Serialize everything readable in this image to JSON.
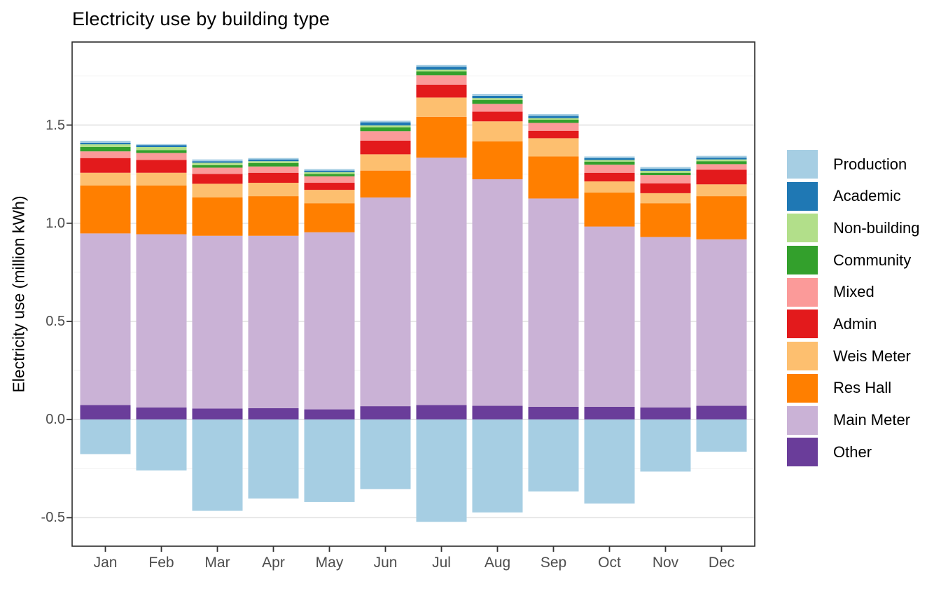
{
  "title": "Electricity use by building type",
  "y_axis": {
    "label": "Electricity use (million kWh)",
    "tick_labels": [
      "-0.5",
      "0.0",
      "0.5",
      "1.0",
      "1.5"
    ],
    "tick_values": [
      -0.5,
      0.0,
      0.5,
      1.0,
      1.5
    ]
  },
  "x_axis": {
    "tick_labels": [
      "Jan",
      "Feb",
      "Mar",
      "Apr",
      "May",
      "Jun",
      "Jul",
      "Aug",
      "Sep",
      "Oct",
      "Nov",
      "Dec"
    ]
  },
  "legend": {
    "entries": [
      {
        "label": "Production",
        "color": "#a6cee3"
      },
      {
        "label": "Academic",
        "color": "#1f78b4"
      },
      {
        "label": "Non-building",
        "color": "#b2df8a"
      },
      {
        "label": "Community",
        "color": "#33a02c"
      },
      {
        "label": "Mixed",
        "color": "#fb9a99"
      },
      {
        "label": "Admin",
        "color": "#e31a1c"
      },
      {
        "label": "Weis Meter",
        "color": "#fdbf6f"
      },
      {
        "label": "Res Hall",
        "color": "#ff7f00"
      },
      {
        "label": "Main Meter",
        "color": "#cab2d6"
      },
      {
        "label": "Other",
        "color": "#6a3d9a"
      }
    ]
  },
  "chart_data": {
    "type": "bar",
    "stacked": true,
    "title": "Electricity use by building type",
    "xlabel": "",
    "ylabel": "Electricity use (million kWh)",
    "categories": [
      "Jan",
      "Feb",
      "Mar",
      "Apr",
      "May",
      "Jun",
      "Jul",
      "Aug",
      "Sep",
      "Oct",
      "Nov",
      "Dec"
    ],
    "ylim": [
      -0.645,
      1.923
    ],
    "grid_major": [
      -0.5,
      0.0,
      0.5,
      1.0,
      1.5
    ],
    "grid_minor": [
      -0.25,
      0.25,
      0.75,
      1.25,
      1.75
    ],
    "legend_position": "right",
    "units": "million kWh",
    "series": [
      {
        "name": "Other",
        "color": "#6a3d9a",
        "values": [
          0.074,
          0.062,
          0.056,
          0.058,
          0.052,
          0.068,
          0.074,
          0.07,
          0.065,
          0.065,
          0.062,
          0.07
        ]
      },
      {
        "name": "Main Meter",
        "color": "#cab2d6",
        "values": [
          0.874,
          0.882,
          0.88,
          0.878,
          0.902,
          1.063,
          1.26,
          1.154,
          1.061,
          0.918,
          0.868,
          0.848
        ]
      },
      {
        "name": "Res Hall",
        "color": "#ff7f00",
        "values": [
          0.244,
          0.248,
          0.196,
          0.202,
          0.148,
          0.137,
          0.208,
          0.193,
          0.214,
          0.173,
          0.172,
          0.22
        ]
      },
      {
        "name": "Weis Meter",
        "color": "#fdbf6f",
        "values": [
          0.065,
          0.065,
          0.069,
          0.068,
          0.068,
          0.083,
          0.098,
          0.102,
          0.093,
          0.057,
          0.051,
          0.06
        ]
      },
      {
        "name": "Admin",
        "color": "#e31a1c",
        "values": [
          0.075,
          0.065,
          0.05,
          0.051,
          0.036,
          0.07,
          0.066,
          0.049,
          0.038,
          0.044,
          0.05,
          0.075
        ]
      },
      {
        "name": "Mixed",
        "color": "#fb9a99",
        "values": [
          0.034,
          0.036,
          0.032,
          0.032,
          0.033,
          0.048,
          0.048,
          0.04,
          0.04,
          0.041,
          0.042,
          0.028
        ]
      },
      {
        "name": "Community",
        "color": "#33a02c",
        "values": [
          0.022,
          0.014,
          0.013,
          0.017,
          0.012,
          0.019,
          0.019,
          0.02,
          0.016,
          0.016,
          0.012,
          0.015
        ]
      },
      {
        "name": "Non-building",
        "color": "#b2df8a",
        "values": [
          0.014,
          0.016,
          0.012,
          0.01,
          0.009,
          0.01,
          0.009,
          0.009,
          0.008,
          0.008,
          0.01,
          0.009
        ]
      },
      {
        "name": "Academic",
        "color": "#1f78b4",
        "values": [
          0.008,
          0.01,
          0.008,
          0.009,
          0.008,
          0.016,
          0.015,
          0.012,
          0.012,
          0.01,
          0.01,
          0.009
        ]
      },
      {
        "name": "Production",
        "color": "#a6cee3",
        "values": [
          0.01,
          0.005,
          0.009,
          0.007,
          0.008,
          0.008,
          0.009,
          0.01,
          0.009,
          0.008,
          0.009,
          0.009
        ]
      },
      {
        "name": "Production",
        "color": "#a6cee3",
        "values": [
          -0.176,
          -0.259,
          -0.465,
          -0.402,
          -0.42,
          -0.354,
          -0.521,
          -0.473,
          -0.366,
          -0.428,
          -0.265,
          -0.164
        ]
      }
    ]
  }
}
